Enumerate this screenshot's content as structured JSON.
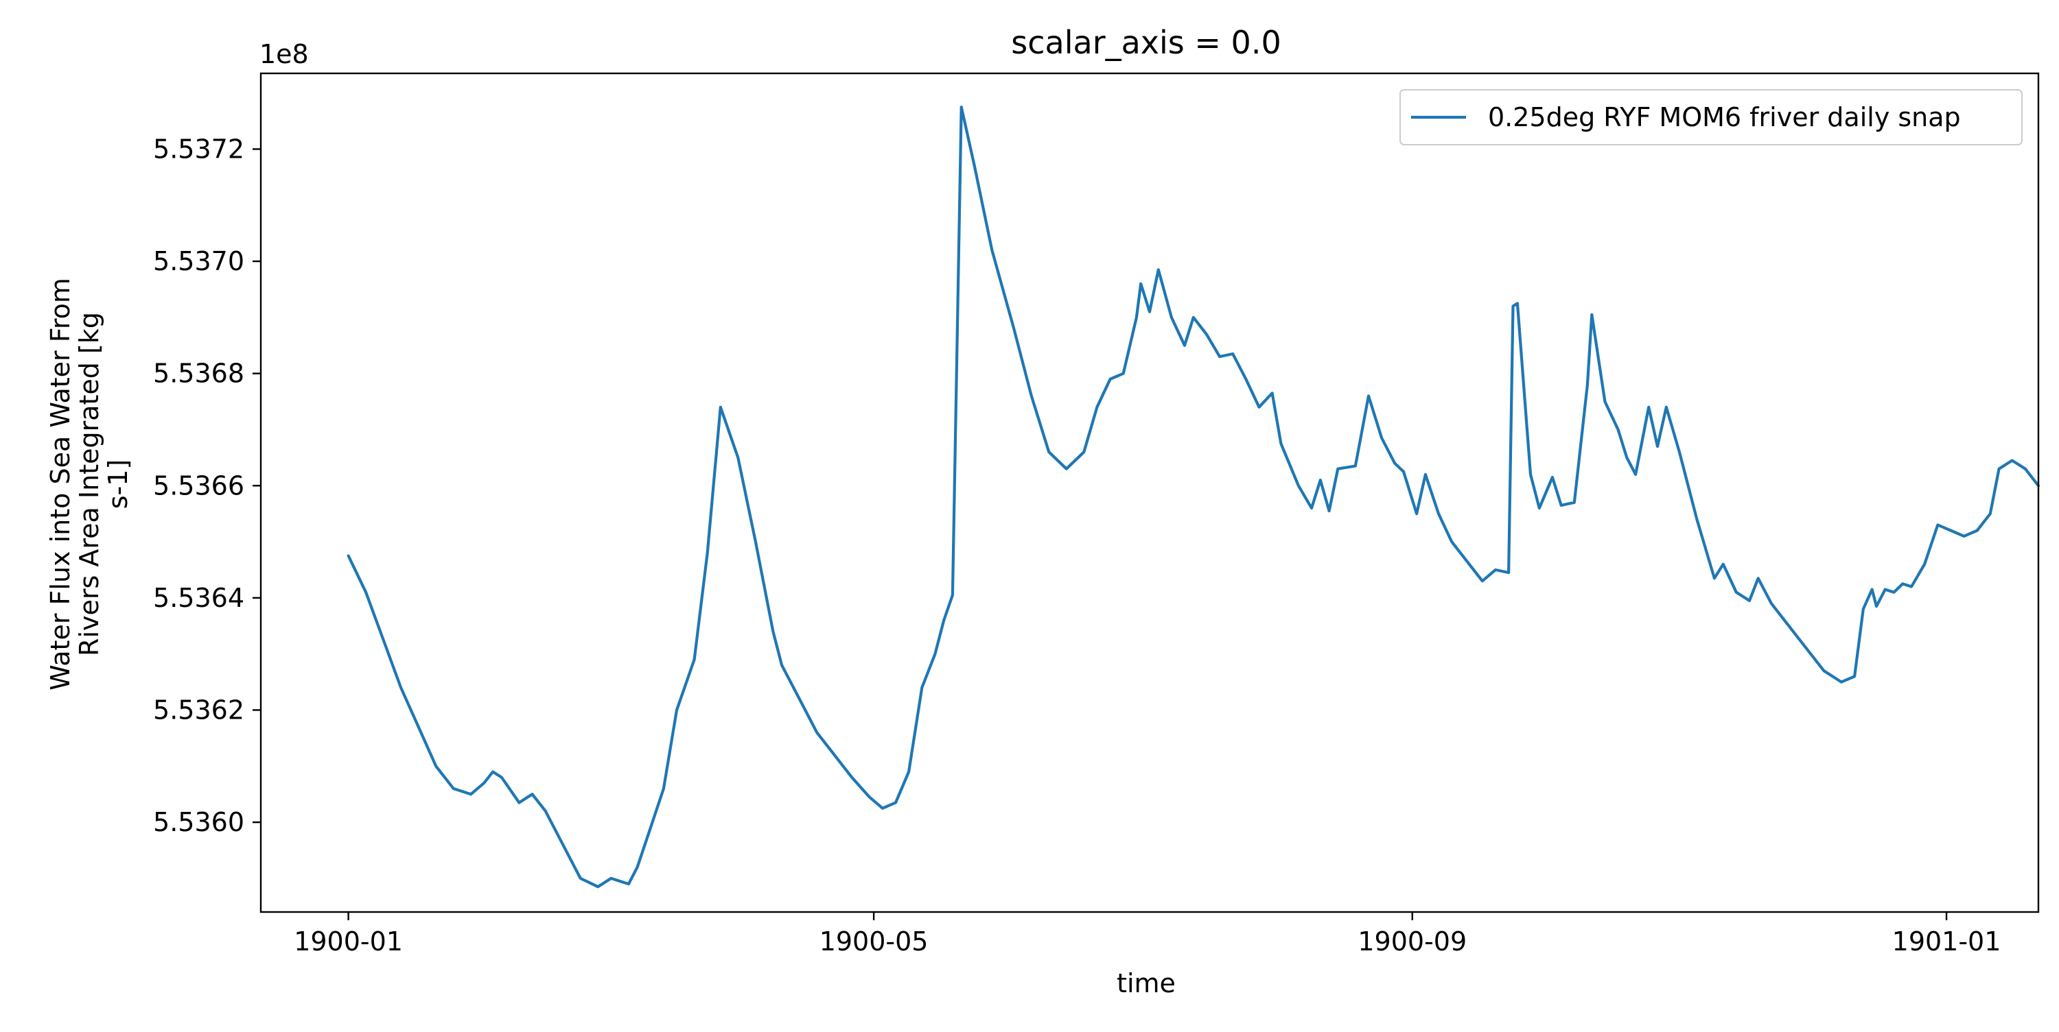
{
  "chart_data": {
    "type": "line",
    "title": "scalar_axis = 0.0",
    "xlabel": "time",
    "ylabel_lines": [
      "Water Flux into Sea Water From",
      "Rivers Area Integrated [kg",
      "s-1]"
    ],
    "y_offset_label": "1e8",
    "x_axis_kind": "date",
    "x_ticks": [
      "1900-01",
      "1900-05",
      "1900-09",
      "1901-01"
    ],
    "x_range": [
      "1899-12-12",
      "1901-01-22"
    ],
    "y_ticks": [
      "5.5360",
      "5.5362",
      "5.5364",
      "5.5366",
      "5.5368",
      "5.5370",
      "5.5372"
    ],
    "y_tick_values": [
      553600000,
      553620000,
      553640000,
      553660000,
      553680000,
      553700000,
      553720000
    ],
    "ylim": [
      553584000,
      553733500
    ],
    "legend_position": "upper right",
    "grid": false,
    "series": [
      {
        "name": "0.25deg RYF MOM6 friver daily snap",
        "color": "#1f77b4",
        "points": [
          [
            "1900-01-01",
            553647500
          ],
          [
            "1900-01-05",
            553641000
          ],
          [
            "1900-01-09",
            553632500
          ],
          [
            "1900-01-13",
            553624000
          ],
          [
            "1900-01-17",
            553617000
          ],
          [
            "1900-01-21",
            553610000
          ],
          [
            "1900-01-25",
            553606000
          ],
          [
            "1900-01-29",
            553605000
          ],
          [
            "1900-02-01",
            553607000
          ],
          [
            "1900-02-03",
            553609000
          ],
          [
            "1900-02-05",
            553608000
          ],
          [
            "1900-02-09",
            553603500
          ],
          [
            "1900-02-12",
            553605000
          ],
          [
            "1900-02-15",
            553602000
          ],
          [
            "1900-02-19",
            553596000
          ],
          [
            "1900-02-23",
            553590000
          ],
          [
            "1900-02-27",
            553588500
          ],
          [
            "1900-03-02",
            553590000
          ],
          [
            "1900-03-06",
            553589000
          ],
          [
            "1900-03-08",
            553592000
          ],
          [
            "1900-03-11",
            553599000
          ],
          [
            "1900-03-14",
            553606000
          ],
          [
            "1900-03-17",
            553620000
          ],
          [
            "1900-03-21",
            553629000
          ],
          [
            "1900-03-24",
            553648000
          ],
          [
            "1900-03-27",
            553674000
          ],
          [
            "1900-03-31",
            553665000
          ],
          [
            "1900-04-04",
            553650000
          ],
          [
            "1900-04-08",
            553634000
          ],
          [
            "1900-04-10",
            553628000
          ],
          [
            "1900-04-14",
            553622000
          ],
          [
            "1900-04-18",
            553616000
          ],
          [
            "1900-04-22",
            553612000
          ],
          [
            "1900-04-26",
            553608000
          ],
          [
            "1900-04-30",
            553604500
          ],
          [
            "1900-05-03",
            553602500
          ],
          [
            "1900-05-06",
            553603500
          ],
          [
            "1900-05-09",
            553609000
          ],
          [
            "1900-05-12",
            553624000
          ],
          [
            "1900-05-15",
            553630000
          ],
          [
            "1900-05-17",
            553636000
          ],
          [
            "1900-05-19",
            553640500
          ],
          [
            "1900-05-21",
            553727500
          ],
          [
            "1900-05-24",
            553717000
          ],
          [
            "1900-05-28",
            553702000
          ],
          [
            "1900-06-02",
            553688000
          ],
          [
            "1900-06-06",
            553676000
          ],
          [
            "1900-06-10",
            553666000
          ],
          [
            "1900-06-14",
            553663000
          ],
          [
            "1900-06-18",
            553666000
          ],
          [
            "1900-06-21",
            553674000
          ],
          [
            "1900-06-24",
            553679000
          ],
          [
            "1900-06-27",
            553680000
          ],
          [
            "1900-06-30",
            553690000
          ],
          [
            "1900-07-01",
            553696000
          ],
          [
            "1900-07-03",
            553691000
          ],
          [
            "1900-07-05",
            553698500
          ],
          [
            "1900-07-08",
            553690000
          ],
          [
            "1900-07-11",
            553685000
          ],
          [
            "1900-07-13",
            553690000
          ],
          [
            "1900-07-16",
            553687000
          ],
          [
            "1900-07-19",
            553683000
          ],
          [
            "1900-07-22",
            553683500
          ],
          [
            "1900-07-25",
            553679000
          ],
          [
            "1900-07-28",
            553674000
          ],
          [
            "1900-07-31",
            553676500
          ],
          [
            "1900-08-02",
            553667500
          ],
          [
            "1900-08-06",
            553660000
          ],
          [
            "1900-08-09",
            553656000
          ],
          [
            "1900-08-11",
            553661000
          ],
          [
            "1900-08-13",
            553655500
          ],
          [
            "1900-08-15",
            553663000
          ],
          [
            "1900-08-19",
            553663500
          ],
          [
            "1900-08-22",
            553676000
          ],
          [
            "1900-08-25",
            553668500
          ],
          [
            "1900-08-28",
            553664000
          ],
          [
            "1900-08-30",
            553662500
          ],
          [
            "1900-09-02",
            553655000
          ],
          [
            "1900-09-04",
            553662000
          ],
          [
            "1900-09-07",
            553655000
          ],
          [
            "1900-09-10",
            553650000
          ],
          [
            "1900-09-14",
            553646000
          ],
          [
            "1900-09-17",
            553643000
          ],
          [
            "1900-09-20",
            553645000
          ],
          [
            "1900-09-23",
            553644500
          ],
          [
            "1900-09-24",
            553692000
          ],
          [
            "1900-09-25",
            553692500
          ],
          [
            "1900-09-28",
            553662000
          ],
          [
            "1900-09-30",
            553656000
          ],
          [
            "1900-10-03",
            553661500
          ],
          [
            "1900-10-05",
            553656500
          ],
          [
            "1900-10-08",
            553657000
          ],
          [
            "1900-10-11",
            553678000
          ],
          [
            "1900-10-12",
            553690500
          ],
          [
            "1900-10-15",
            553675000
          ],
          [
            "1900-10-18",
            553670000
          ],
          [
            "1900-10-20",
            553665000
          ],
          [
            "1900-10-22",
            553662000
          ],
          [
            "1900-10-25",
            553674000
          ],
          [
            "1900-10-27",
            553667000
          ],
          [
            "1900-10-29",
            553674000
          ],
          [
            "1900-11-01",
            553666000
          ],
          [
            "1900-11-05",
            553654000
          ],
          [
            "1900-11-09",
            553643500
          ],
          [
            "1900-11-11",
            553646000
          ],
          [
            "1900-11-14",
            553641000
          ],
          [
            "1900-11-17",
            553639500
          ],
          [
            "1900-11-19",
            553643500
          ],
          [
            "1900-11-22",
            553639000
          ],
          [
            "1900-11-26",
            553635000
          ],
          [
            "1900-11-30",
            553631000
          ],
          [
            "1900-12-04",
            553627000
          ],
          [
            "1900-12-08",
            553625000
          ],
          [
            "1900-12-11",
            553626000
          ],
          [
            "1900-12-13",
            553638000
          ],
          [
            "1900-12-15",
            553641500
          ],
          [
            "1900-12-16",
            553638500
          ],
          [
            "1900-12-18",
            553641500
          ],
          [
            "1900-12-20",
            553641000
          ],
          [
            "1900-12-22",
            553642500
          ],
          [
            "1900-12-24",
            553642000
          ],
          [
            "1900-12-27",
            553646000
          ],
          [
            "1900-12-30",
            553653000
          ],
          [
            "1901-01-02",
            553652000
          ],
          [
            "1901-01-05",
            553651000
          ],
          [
            "1901-01-08",
            553652000
          ],
          [
            "1901-01-11",
            553655000
          ],
          [
            "1901-01-13",
            553663000
          ],
          [
            "1901-01-16",
            553664500
          ],
          [
            "1901-01-19",
            553663000
          ],
          [
            "1901-01-22",
            553660000
          ]
        ]
      }
    ]
  }
}
